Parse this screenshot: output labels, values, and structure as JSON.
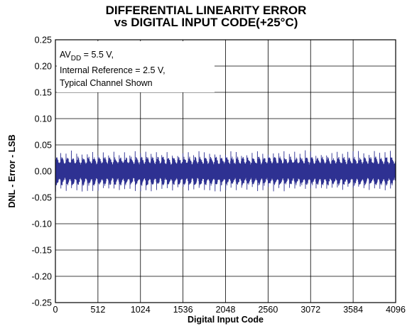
{
  "chart_data": {
    "type": "line",
    "title_line1": "DIFFERENTIAL LINEARITY ERROR",
    "title_line2": "vs DIGITAL INPUT CODE(+25°C)",
    "xlabel": "Digital Input Code",
    "ylabel": "DNL - Error - LSB",
    "xlim": [
      0,
      4096
    ],
    "ylim": [
      -0.25,
      0.25
    ],
    "x_ticks": [
      0,
      512,
      1024,
      1536,
      2048,
      2560,
      3072,
      3584,
      4096
    ],
    "x_tick_labels": [
      "0",
      "512",
      "1024",
      "1536",
      "2048",
      "2560",
      "3072",
      "3584",
      "4096"
    ],
    "y_ticks": [
      0.25,
      0.2,
      0.15,
      0.1,
      0.05,
      0.0,
      -0.05,
      -0.1,
      -0.15,
      -0.2,
      -0.25
    ],
    "y_tick_labels": [
      "0.25",
      "0.20",
      "0.15",
      "0.10",
      "0.05",
      "0.00",
      "-0.05",
      "-0.10",
      "-0.15",
      "-0.20",
      "-0.25"
    ],
    "grid": true,
    "annotation": {
      "line1_main": "AV",
      "line1_sub": "DD",
      "line1_rest": " = 5.5 V,",
      "line2": "Internal Reference = 2.5 V,",
      "line3": "Typical Channel Shown"
    },
    "series": [
      {
        "color": "#2e3192",
        "x_range": [
          0,
          4095
        ],
        "envelope_max": 0.04,
        "envelope_min": -0.04,
        "periodic_pattern_period_codes": 64,
        "typical_peak_range": [
          0.03,
          0.04
        ]
      }
    ]
  }
}
